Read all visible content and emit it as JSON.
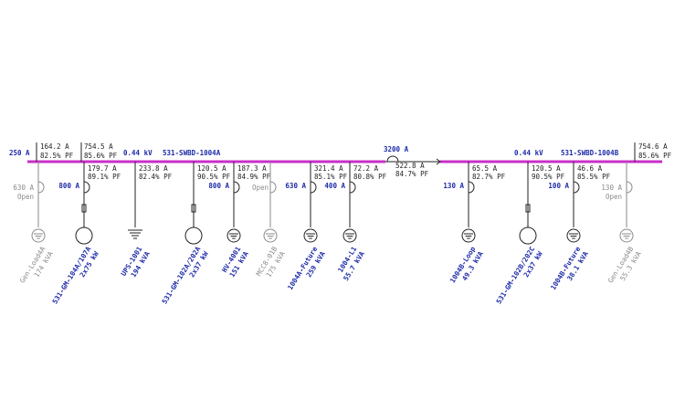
{
  "bus_a": {
    "incomer_rating": "250 A",
    "incomer_current": "164.2 A",
    "incomer_pf": "82.5% PF",
    "main_current": "754.5 A",
    "main_pf": "85.6% PF",
    "voltage": "0.44 kV",
    "name": "531-SWBD-1004A"
  },
  "tie": {
    "rating": "3200 A",
    "current": "522.8 A",
    "pf": "84.7% PF"
  },
  "bus_b": {
    "voltage": "0.44 kV",
    "name": "531-SWBD-1004B",
    "main_current": "754.6 A",
    "main_pf": "85.6% PF"
  },
  "feeders": [
    {
      "breaker": "630 A",
      "status": "Open",
      "label": "Gen-Load4A",
      "rating": "174 kVA",
      "symbol": "ground"
    },
    {
      "current": "179.7 A",
      "pf": "89.1% PF",
      "breaker": "800 A",
      "label": "531-GM-104A/107A",
      "rating": "2x75 kW",
      "symbol": "motor"
    },
    {
      "current": "233.8 A",
      "pf": "82.4% PF",
      "label": "UPS-1001",
      "rating": "194 kVA",
      "symbol": "ups"
    },
    {
      "current": "120.5 A",
      "pf": "90.5% PF",
      "label": "531-GM-102A/202A",
      "rating": "2x37 kW",
      "symbol": "motor"
    },
    {
      "current": "187.3 A",
      "pf": "84.9% PF",
      "breaker": "800 A",
      "label": "HV-4001",
      "rating": "151 kVA",
      "symbol": "ground"
    },
    {
      "status": "Open",
      "label": "MCC8-01B",
      "rating": "175 kVA",
      "symbol": "ground"
    },
    {
      "current": "321.4 A",
      "pf": "85.1% PF",
      "breaker": "630 A",
      "label": "1004A-Future",
      "rating": "259 kVA",
      "symbol": "ground"
    },
    {
      "current": "72.2 A",
      "pf": "80.8% PF",
      "breaker": "400 A",
      "label": "1004-L1",
      "rating": "55.7 kVA",
      "symbol": "ground"
    },
    {
      "current": "65.5 A",
      "pf": "82.7% PF",
      "breaker": "130 A",
      "label": "1004B-Loop",
      "rating": "49.3 kVA",
      "symbol": "ground"
    },
    {
      "current": "120.5 A",
      "pf": "90.5% PF",
      "label": "531-GM-102B/202C",
      "rating": "2x37 kW",
      "symbol": "motor"
    },
    {
      "current": "46.6 A",
      "pf": "85.5% PF",
      "breaker": "100 A",
      "label": "1004B-Future",
      "rating": "38.1 kVA",
      "symbol": "ground"
    },
    {
      "breaker": "130 A",
      "status": "Open",
      "label": "Gen-Load4B",
      "rating": "55.3 kVA",
      "symbol": "ground"
    }
  ]
}
